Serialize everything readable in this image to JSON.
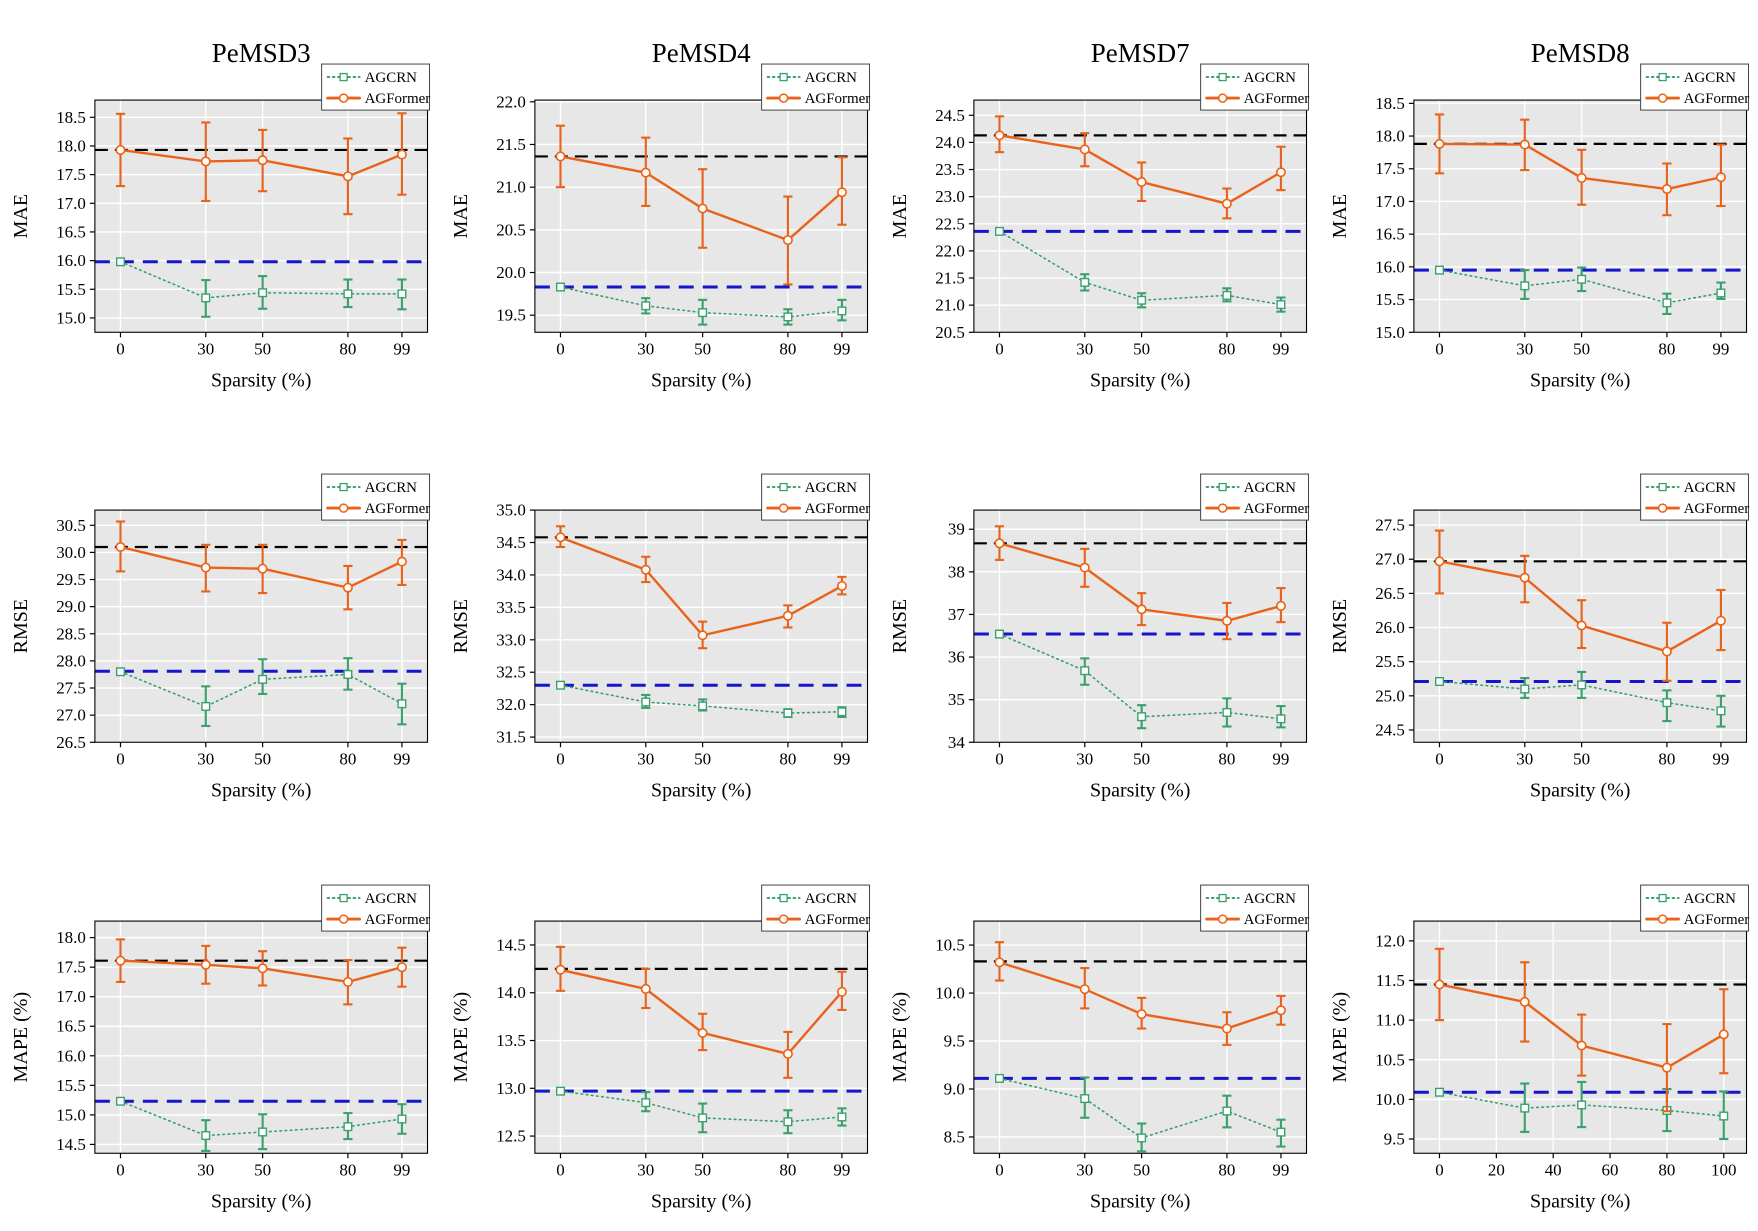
{
  "figure": {
    "xlabel": "Sparsity (%)",
    "legend": [
      "AGCRN",
      "AGFormer"
    ],
    "columns": [
      "PeMSD3",
      "PeMSD4",
      "PeMSD7",
      "PeMSD8"
    ],
    "rows": [
      "MAE",
      "RMSE",
      "MAPE (%)"
    ],
    "colors": {
      "agcrn": "#3aa06d",
      "agformer": "#e8621a",
      "baseline_black": "#000000",
      "baseline_blue": "#1515cc",
      "plot_bg": "#e7e7e7",
      "grid": "#ffffff"
    }
  },
  "chart_data": [
    {
      "dataset": "PeMSD3",
      "metric": "MAE",
      "title": "PeMSD3",
      "ylabel": "MAE",
      "xlabel": "Sparsity (%)",
      "type": "line",
      "x": [
        0,
        30,
        50,
        80,
        99
      ],
      "xticks": [
        0,
        30,
        50,
        80,
        99
      ],
      "xlim": [
        -9,
        108
      ],
      "ylim": [
        14.75,
        18.8
      ],
      "yticks": [
        15.0,
        15.5,
        16.0,
        16.5,
        17.0,
        17.5,
        18.0,
        18.5
      ],
      "ydecimals": 1,
      "series": [
        {
          "name": "AGCRN",
          "values": [
            15.98,
            15.35,
            15.44,
            15.42,
            15.42
          ],
          "err_low": [
            15.98,
            15.02,
            15.16,
            15.19,
            15.15
          ],
          "err_high": [
            15.98,
            15.66,
            15.73,
            15.67,
            15.67
          ]
        },
        {
          "name": "AGFormer",
          "values": [
            17.93,
            17.73,
            17.75,
            17.47,
            17.85
          ],
          "err_low": [
            17.3,
            17.04,
            17.21,
            16.81,
            17.15
          ],
          "err_high": [
            18.56,
            18.41,
            18.28,
            18.13,
            18.57
          ]
        }
      ],
      "baselines": {
        "black_dashed": 17.93,
        "blue_dashed": 15.98
      }
    },
    {
      "dataset": "PeMSD4",
      "metric": "MAE",
      "title": "PeMSD4",
      "ylabel": "MAE",
      "xlabel": "Sparsity (%)",
      "type": "line",
      "x": [
        0,
        30,
        50,
        80,
        99
      ],
      "xticks": [
        0,
        30,
        50,
        80,
        99
      ],
      "xlim": [
        -9,
        108
      ],
      "ylim": [
        19.3,
        22.02
      ],
      "yticks": [
        19.5,
        20.0,
        20.5,
        21.0,
        21.5,
        22.0
      ],
      "ydecimals": 1,
      "series": [
        {
          "name": "AGCRN",
          "values": [
            19.83,
            19.61,
            19.53,
            19.48,
            19.55
          ],
          "err_low": [
            19.83,
            19.52,
            19.39,
            19.39,
            19.44
          ],
          "err_high": [
            19.83,
            19.7,
            19.68,
            19.57,
            19.68
          ]
        },
        {
          "name": "AGFormer",
          "values": [
            21.36,
            21.17,
            20.75,
            20.38,
            20.94
          ],
          "err_low": [
            21.0,
            20.78,
            20.29,
            19.86,
            20.56
          ],
          "err_high": [
            21.72,
            21.58,
            21.21,
            20.89,
            21.35
          ]
        }
      ],
      "baselines": {
        "black_dashed": 21.36,
        "blue_dashed": 19.83
      }
    },
    {
      "dataset": "PeMSD7",
      "metric": "MAE",
      "title": "PeMSD7",
      "ylabel": "MAE",
      "xlabel": "Sparsity (%)",
      "type": "line",
      "x": [
        0,
        30,
        50,
        80,
        99
      ],
      "xticks": [
        0,
        30,
        50,
        80,
        99
      ],
      "xlim": [
        -9,
        108
      ],
      "ylim": [
        20.5,
        24.78
      ],
      "yticks": [
        20.5,
        21.0,
        21.5,
        22.0,
        22.5,
        23.0,
        23.5,
        24.0,
        24.5
      ],
      "ydecimals": 1,
      "series": [
        {
          "name": "AGCRN",
          "values": [
            22.36,
            21.42,
            21.09,
            21.18,
            21.01
          ],
          "err_low": [
            22.36,
            21.27,
            20.96,
            21.07,
            20.88
          ],
          "err_high": [
            22.36,
            21.57,
            21.22,
            21.31,
            21.14
          ]
        },
        {
          "name": "AGFormer",
          "values": [
            24.13,
            23.87,
            23.27,
            22.87,
            23.45
          ],
          "err_low": [
            23.82,
            23.56,
            22.92,
            22.6,
            23.12
          ],
          "err_high": [
            24.48,
            24.17,
            23.63,
            23.15,
            23.92
          ]
        }
      ],
      "baselines": {
        "black_dashed": 24.13,
        "blue_dashed": 22.36
      }
    },
    {
      "dataset": "PeMSD8",
      "metric": "MAE",
      "title": "PeMSD8",
      "ylabel": "MAE",
      "xlabel": "Sparsity (%)",
      "type": "line",
      "x": [
        0,
        30,
        50,
        80,
        99
      ],
      "xticks": [
        0,
        30,
        50,
        80,
        99
      ],
      "xlim": [
        -9,
        108
      ],
      "ylim": [
        15.0,
        18.55
      ],
      "yticks": [
        15.0,
        15.5,
        16.0,
        16.5,
        17.0,
        17.5,
        18.0,
        18.5
      ],
      "ydecimals": 1,
      "series": [
        {
          "name": "AGCRN",
          "values": [
            15.95,
            15.71,
            15.81,
            15.45,
            15.6
          ],
          "err_low": [
            15.95,
            15.51,
            15.63,
            15.28,
            15.51
          ],
          "err_high": [
            15.95,
            15.95,
            15.99,
            15.59,
            15.76
          ]
        },
        {
          "name": "AGFormer",
          "values": [
            17.88,
            17.87,
            17.36,
            17.19,
            17.37
          ],
          "err_low": [
            17.43,
            17.48,
            16.95,
            16.79,
            16.93
          ],
          "err_high": [
            18.33,
            18.25,
            17.79,
            17.58,
            17.87
          ]
        }
      ],
      "baselines": {
        "black_dashed": 17.88,
        "blue_dashed": 15.95
      }
    },
    {
      "dataset": "PeMSD3",
      "metric": "RMSE",
      "title": "",
      "ylabel": "RMSE",
      "xlabel": "Sparsity (%)",
      "type": "line",
      "x": [
        0,
        30,
        50,
        80,
        99
      ],
      "xticks": [
        0,
        30,
        50,
        80,
        99
      ],
      "xlim": [
        -9,
        108
      ],
      "ylim": [
        26.5,
        30.78
      ],
      "yticks": [
        26.5,
        27.0,
        27.5,
        28.0,
        28.5,
        29.0,
        29.5,
        30.0,
        30.5
      ],
      "ydecimals": 1,
      "series": [
        {
          "name": "AGCRN",
          "values": [
            27.8,
            27.16,
            27.66,
            27.75,
            27.21
          ],
          "err_low": [
            27.8,
            26.8,
            27.39,
            27.47,
            26.83
          ],
          "err_high": [
            27.8,
            27.53,
            28.03,
            28.05,
            27.58
          ]
        },
        {
          "name": "AGFormer",
          "values": [
            30.1,
            29.72,
            29.7,
            29.35,
            29.83
          ],
          "err_low": [
            29.65,
            29.28,
            29.25,
            28.95,
            29.4
          ],
          "err_high": [
            30.57,
            30.14,
            30.14,
            29.75,
            30.23
          ]
        }
      ],
      "baselines": {
        "black_dashed": 30.1,
        "blue_dashed": 27.81
      }
    },
    {
      "dataset": "PeMSD4",
      "metric": "RMSE",
      "title": "",
      "ylabel": "RMSE",
      "xlabel": "Sparsity (%)",
      "type": "line",
      "x": [
        0,
        30,
        50,
        80,
        99
      ],
      "xticks": [
        0,
        30,
        50,
        80,
        99
      ],
      "xlim": [
        -9,
        108
      ],
      "ylim": [
        31.42,
        35.0
      ],
      "yticks": [
        31.5,
        32.0,
        32.5,
        33.0,
        33.5,
        34.0,
        34.5,
        35.0
      ],
      "ydecimals": 1,
      "series": [
        {
          "name": "AGCRN",
          "values": [
            32.3,
            32.04,
            31.98,
            31.87,
            31.89
          ],
          "err_low": [
            32.3,
            31.95,
            31.91,
            31.81,
            31.81
          ],
          "err_high": [
            32.3,
            32.15,
            32.08,
            31.93,
            31.96
          ]
        },
        {
          "name": "AGFormer",
          "values": [
            34.58,
            34.08,
            33.07,
            33.37,
            33.83
          ],
          "err_low": [
            34.43,
            33.89,
            32.87,
            33.19,
            33.7
          ],
          "err_high": [
            34.75,
            34.28,
            33.28,
            33.53,
            33.97
          ]
        }
      ],
      "baselines": {
        "black_dashed": 34.58,
        "blue_dashed": 32.3
      }
    },
    {
      "dataset": "PeMSD7",
      "metric": "RMSE",
      "title": "",
      "ylabel": "RMSE",
      "xlabel": "Sparsity (%)",
      "type": "line",
      "x": [
        0,
        30,
        50,
        80,
        99
      ],
      "xticks": [
        0,
        30,
        50,
        80,
        99
      ],
      "xlim": [
        -9,
        108
      ],
      "ylim": [
        34.0,
        39.45
      ],
      "yticks": [
        34,
        35,
        36,
        37,
        38,
        39
      ],
      "ydecimals": 0,
      "series": [
        {
          "name": "AGCRN",
          "values": [
            36.54,
            35.68,
            34.6,
            34.7,
            34.55
          ],
          "err_low": [
            36.54,
            35.35,
            34.33,
            34.37,
            34.35
          ],
          "err_high": [
            36.54,
            35.97,
            34.87,
            35.03,
            34.85
          ]
        },
        {
          "name": "AGFormer",
          "values": [
            38.67,
            38.1,
            37.12,
            36.85,
            37.2
          ],
          "err_low": [
            38.28,
            37.65,
            36.75,
            36.42,
            36.82
          ],
          "err_high": [
            39.07,
            38.54,
            37.5,
            37.27,
            37.62
          ]
        }
      ],
      "baselines": {
        "black_dashed": 38.67,
        "blue_dashed": 36.54
      }
    },
    {
      "dataset": "PeMSD8",
      "metric": "RMSE",
      "title": "",
      "ylabel": "RMSE",
      "xlabel": "Sparsity (%)",
      "type": "line",
      "x": [
        0,
        30,
        50,
        80,
        99
      ],
      "xticks": [
        0,
        30,
        50,
        80,
        99
      ],
      "xlim": [
        -9,
        108
      ],
      "ylim": [
        24.32,
        27.72
      ],
      "yticks": [
        24.5,
        25.0,
        25.5,
        26.0,
        26.5,
        27.0,
        27.5
      ],
      "ydecimals": 1,
      "series": [
        {
          "name": "AGCRN",
          "values": [
            25.21,
            25.1,
            25.16,
            24.9,
            24.78
          ],
          "err_low": [
            25.21,
            24.97,
            24.97,
            24.63,
            24.55
          ],
          "err_high": [
            25.21,
            25.26,
            25.35,
            25.08,
            25.0
          ]
        },
        {
          "name": "AGFormer",
          "values": [
            26.97,
            26.73,
            26.03,
            25.65,
            26.1
          ],
          "err_low": [
            26.5,
            26.37,
            25.7,
            25.22,
            25.67
          ],
          "err_high": [
            27.42,
            27.05,
            26.4,
            26.07,
            26.55
          ]
        }
      ],
      "baselines": {
        "black_dashed": 26.97,
        "blue_dashed": 25.21
      }
    },
    {
      "dataset": "PeMSD3",
      "metric": "MAPE",
      "title": "",
      "ylabel": "MAPE (%)",
      "xlabel": "Sparsity (%)",
      "type": "line",
      "x": [
        0,
        30,
        50,
        80,
        99
      ],
      "xticks": [
        0,
        30,
        50,
        80,
        99
      ],
      "xlim": [
        -9,
        108
      ],
      "ylim": [
        14.35,
        18.28
      ],
      "yticks": [
        14.5,
        15.0,
        15.5,
        16.0,
        16.5,
        17.0,
        17.5,
        18.0
      ],
      "ydecimals": 1,
      "series": [
        {
          "name": "AGCRN",
          "values": [
            15.23,
            14.65,
            14.71,
            14.8,
            14.93
          ],
          "err_low": [
            15.23,
            14.39,
            14.42,
            14.59,
            14.68
          ],
          "err_high": [
            15.23,
            14.91,
            15.01,
            15.03,
            15.18
          ]
        },
        {
          "name": "AGFormer",
          "values": [
            17.61,
            17.54,
            17.48,
            17.25,
            17.5
          ],
          "err_low": [
            17.25,
            17.22,
            17.19,
            16.87,
            17.17
          ],
          "err_high": [
            17.97,
            17.86,
            17.77,
            17.62,
            17.83
          ]
        }
      ],
      "baselines": {
        "black_dashed": 17.61,
        "blue_dashed": 15.23
      }
    },
    {
      "dataset": "PeMSD4",
      "metric": "MAPE",
      "title": "",
      "ylabel": "MAPE (%)",
      "xlabel": "Sparsity (%)",
      "type": "line",
      "x": [
        0,
        30,
        50,
        80,
        99
      ],
      "xticks": [
        0,
        30,
        50,
        80,
        99
      ],
      "xlim": [
        -9,
        108
      ],
      "ylim": [
        12.32,
        14.75
      ],
      "yticks": [
        12.5,
        13.0,
        13.5,
        14.0,
        14.5
      ],
      "ydecimals": 1,
      "series": [
        {
          "name": "AGCRN",
          "values": [
            12.97,
            12.85,
            12.69,
            12.65,
            12.7
          ],
          "err_low": [
            12.97,
            12.76,
            12.54,
            12.53,
            12.61
          ],
          "err_high": [
            12.97,
            12.96,
            12.84,
            12.77,
            12.79
          ]
        },
        {
          "name": "AGFormer",
          "values": [
            14.24,
            14.04,
            13.58,
            13.36,
            14.01
          ],
          "err_low": [
            14.02,
            13.84,
            13.4,
            13.11,
            13.82
          ],
          "err_high": [
            14.48,
            14.25,
            13.78,
            13.59,
            14.22
          ]
        }
      ],
      "baselines": {
        "black_dashed": 14.25,
        "blue_dashed": 12.97
      }
    },
    {
      "dataset": "PeMSD7",
      "metric": "MAPE",
      "title": "",
      "ylabel": "MAPE (%)",
      "xlabel": "Sparsity (%)",
      "type": "line",
      "x": [
        0,
        30,
        50,
        80,
        99
      ],
      "xticks": [
        0,
        30,
        50,
        80,
        99
      ],
      "xlim": [
        -9,
        108
      ],
      "ylim": [
        8.33,
        10.75
      ],
      "yticks": [
        8.5,
        9.0,
        9.5,
        10.0,
        10.5
      ],
      "ydecimals": 1,
      "series": [
        {
          "name": "AGCRN",
          "values": [
            9.11,
            8.9,
            8.49,
            8.77,
            8.55
          ],
          "err_low": [
            9.11,
            8.7,
            8.35,
            8.6,
            8.4
          ],
          "err_high": [
            9.11,
            9.12,
            8.64,
            8.93,
            8.68
          ]
        },
        {
          "name": "AGFormer",
          "values": [
            10.32,
            10.04,
            9.78,
            9.63,
            9.82
          ],
          "err_low": [
            10.13,
            9.84,
            9.63,
            9.46,
            9.67
          ],
          "err_high": [
            10.53,
            10.26,
            9.95,
            9.8,
            9.97
          ]
        }
      ],
      "baselines": {
        "black_dashed": 10.33,
        "blue_dashed": 9.11
      }
    },
    {
      "dataset": "PeMSD8",
      "metric": "MAPE",
      "title": "",
      "ylabel": "MAPE (%)",
      "xlabel": "Sparsity (%)",
      "type": "line",
      "x": [
        0,
        30,
        50,
        80,
        100
      ],
      "xticks": [
        0,
        20,
        40,
        60,
        80,
        100
      ],
      "xlim": [
        -9,
        108
      ],
      "ylim": [
        9.32,
        12.25
      ],
      "yticks": [
        9.5,
        10.0,
        10.5,
        11.0,
        11.5,
        12.0
      ],
      "ydecimals": 1,
      "series": [
        {
          "name": "AGCRN",
          "values": [
            10.09,
            9.89,
            9.93,
            9.86,
            9.79
          ],
          "err_low": [
            10.09,
            9.59,
            9.65,
            9.6,
            9.5
          ],
          "err_high": [
            10.09,
            10.2,
            10.22,
            10.13,
            10.1
          ]
        },
        {
          "name": "AGFormer",
          "values": [
            11.45,
            11.23,
            10.68,
            10.4,
            10.82
          ],
          "err_low": [
            11.0,
            10.73,
            10.3,
            9.85,
            10.33
          ],
          "err_high": [
            11.9,
            11.73,
            11.07,
            10.95,
            11.39
          ]
        }
      ],
      "baselines": {
        "black_dashed": 11.45,
        "blue_dashed": 10.09
      }
    }
  ]
}
